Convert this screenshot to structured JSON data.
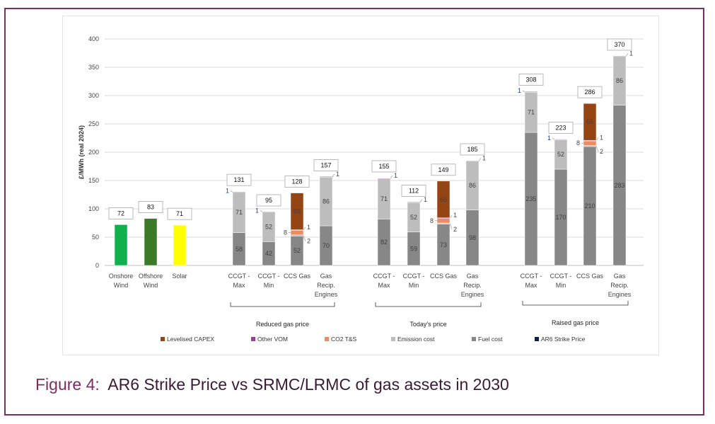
{
  "chart_data": {
    "type": "bar",
    "stacked": true,
    "title": "",
    "ylabel": "£/MWh (real 2024)",
    "xlabel": "",
    "ylim": [
      0,
      400
    ],
    "yticks": [
      0,
      50,
      100,
      150,
      200,
      250,
      300,
      350,
      400
    ],
    "grid": true,
    "legend_position": "bottom",
    "categories": [
      {
        "label": [
          "Onshore",
          "Wind"
        ],
        "group": null
      },
      {
        "label": [
          "Offshore",
          "Wind"
        ],
        "group": null
      },
      {
        "label": [
          "Solar"
        ],
        "group": null
      },
      {
        "label": [
          "CCGT -",
          "Max"
        ],
        "group": 0
      },
      {
        "label": [
          "CCGT -",
          "Min"
        ],
        "group": 0
      },
      {
        "label": [
          "CCS Gas"
        ],
        "group": 0
      },
      {
        "label": [
          "Gas",
          "Recip.",
          "Engines"
        ],
        "group": 0
      },
      {
        "label": [
          "CCGT -",
          "Max"
        ],
        "group": 1
      },
      {
        "label": [
          "CCGT -",
          "Min"
        ],
        "group": 1
      },
      {
        "label": [
          "CCS Gas"
        ],
        "group": 1
      },
      {
        "label": [
          "Gas",
          "Recip.",
          "Engines"
        ],
        "group": 1
      },
      {
        "label": [
          "CCGT -",
          "Max"
        ],
        "group": 2
      },
      {
        "label": [
          "CCGT -",
          "Min"
        ],
        "group": 2
      },
      {
        "label": [
          "CCS Gas"
        ],
        "group": 2
      },
      {
        "label": [
          "Gas",
          "Recip.",
          "Engines"
        ],
        "group": 2
      }
    ],
    "groups": [
      "Reduced gas price",
      "Today's price",
      "Raised gas price"
    ],
    "series": [
      {
        "name": "Fuel cost",
        "color": "#878787",
        "values": [
          0,
          0,
          0,
          58,
          42,
          52,
          70,
          82,
          59,
          73,
          98,
          235,
          170,
          210,
          283
        ]
      },
      {
        "name": "Emission cost",
        "color": "#bdbdbd",
        "values": [
          0,
          0,
          0,
          71,
          52,
          2,
          86,
          71,
          52,
          2,
          86,
          71,
          52,
          2,
          86
        ]
      },
      {
        "name": "CO2 T&S",
        "color": "#ef8b5f",
        "values": [
          0,
          0,
          0,
          0,
          0,
          8,
          0,
          0,
          0,
          8,
          0,
          0,
          0,
          8,
          0
        ]
      },
      {
        "name": "Other VOM",
        "color": "#a03b9e",
        "values": [
          0,
          0,
          0,
          1,
          1,
          1,
          1,
          1,
          1,
          1,
          1,
          1,
          1,
          1,
          1
        ]
      },
      {
        "name": "Levelised CAPEX",
        "color": "#954413",
        "values": [
          0,
          0,
          0,
          0,
          0,
          65,
          0,
          0,
          0,
          65,
          0,
          0,
          0,
          65,
          0
        ]
      },
      {
        "name": "AR6 Strike Price",
        "color": "#0f1f4f",
        "values": [
          72,
          83,
          71,
          0,
          0,
          0,
          0,
          0,
          0,
          0,
          0,
          0,
          0,
          0,
          0
        ],
        "bar_colors": [
          "#10b04f",
          "#3b7a26",
          "#ffff00"
        ]
      }
    ],
    "totals": [
      72,
      83,
      71,
      131,
      95,
      128,
      157,
      155,
      112,
      149,
      185,
      308,
      223,
      286,
      370
    ],
    "legend_order": [
      "Levelised CAPEX",
      "Other VOM",
      "CO2 T&S",
      "Emission cost",
      "Fuel cost",
      "AR6 Strike Price"
    ]
  },
  "caption": {
    "figure": "Figure 4:",
    "text": "AR6 Strike Price vs SRMC/LRMC of gas assets in 2030"
  }
}
